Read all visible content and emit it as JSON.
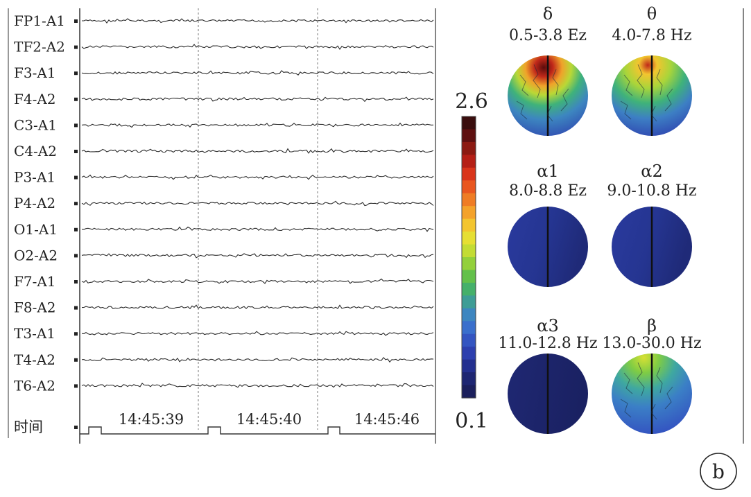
{
  "eeg_panel": {
    "channels": [
      "FP1-A1",
      "TF2-A2",
      "F3-A1",
      "F4-A2",
      "C3-A1",
      "C4-A2",
      "P3-A1",
      "P4-A2",
      "O1-A1",
      "O2-A2",
      "F7-A1",
      "F8-A2",
      "T3-A1",
      "T4-A2",
      "T6-A2"
    ],
    "time_row_label": "时间",
    "timestamps": [
      "14:45:39",
      "14:45:40",
      "14:45:46"
    ]
  },
  "colorbar": {
    "max_label": "2.6",
    "min_label": "0.1",
    "colors": [
      "#3a0e0e",
      "#5e1010",
      "#8c1a12",
      "#b51f16",
      "#d9341b",
      "#e9561f",
      "#ef7c24",
      "#f4a22a",
      "#f3c52f",
      "#e6df33",
      "#c3dc34",
      "#93d03b",
      "#63c04a",
      "#45b06a",
      "#3e9d96",
      "#3d86c0",
      "#3a6fcc",
      "#3455c1",
      "#2d3fae",
      "#24308f",
      "#1e2672",
      "#1b1f5c"
    ]
  },
  "topomaps": [
    {
      "symbol": "δ",
      "range": "0.5-3.8 Ez",
      "pattern": "hot"
    },
    {
      "symbol": "θ",
      "range": "4.0-7.8 Hz",
      "pattern": "warm"
    },
    {
      "symbol": "α1",
      "range": "8.0-8.8 Ez",
      "pattern": "cold"
    },
    {
      "symbol": "α2",
      "range": "9.0-10.8 Hz",
      "pattern": "cold"
    },
    {
      "symbol": "α3",
      "range": "11.0-12.8 Hz",
      "pattern": "coldest"
    },
    {
      "symbol": "β",
      "range": "13.0-30.0 Hz",
      "pattern": "mild"
    }
  ],
  "panel_badge": "b"
}
